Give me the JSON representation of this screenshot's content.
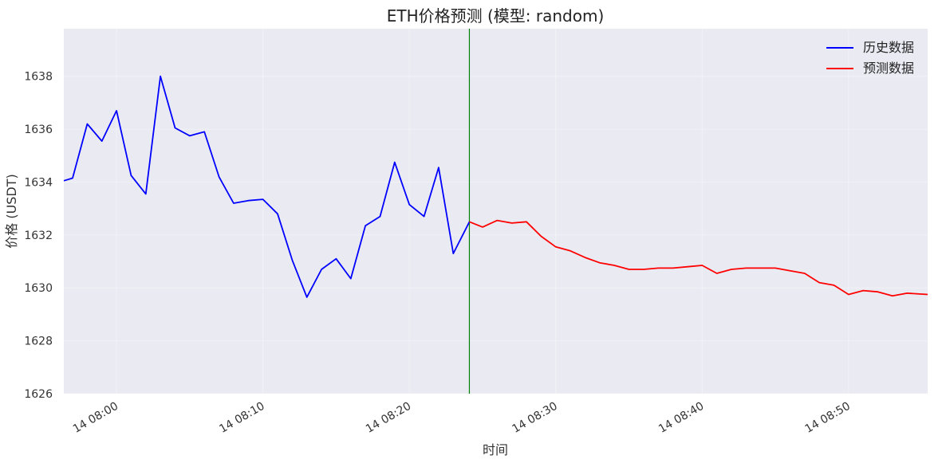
{
  "chart_data": {
    "type": "line",
    "title": "ETH价格预测 (模型: random)",
    "xlabel": "时间",
    "ylabel": "价格 (USDT)",
    "x_unit": "minutes",
    "xlim": [
      "08:56",
      "08:55"
    ],
    "x_range_minutes": [
      -3.6,
      55.4
    ],
    "ylim": [
      1626,
      1639.8
    ],
    "y_ticks": [
      1626,
      1628,
      1630,
      1632,
      1634,
      1636,
      1638
    ],
    "x_ticks": [
      {
        "x": 0,
        "label": "14 08:00"
      },
      {
        "x": 10,
        "label": "14 08:10"
      },
      {
        "x": 20,
        "label": "14 08:20"
      },
      {
        "x": 30,
        "label": "14 08:30"
      },
      {
        "x": 40,
        "label": "14 08:40"
      },
      {
        "x": 50,
        "label": "14 08:50"
      }
    ],
    "grid": true,
    "legend_position": "top-right",
    "split_line_x": 24.1,
    "colors": {
      "background": "#eaeaf2",
      "history": "#0000ff",
      "forecast": "#ff0000",
      "split": "#008000"
    },
    "series": [
      {
        "name": "历史数据",
        "key": "history",
        "points": [
          [
            -3.6,
            1634.05
          ],
          [
            -3.0,
            1634.15
          ],
          [
            -2.0,
            1636.2
          ],
          [
            -1.0,
            1635.55
          ],
          [
            0.0,
            1636.7
          ],
          [
            1.0,
            1634.25
          ],
          [
            2.0,
            1633.55
          ],
          [
            3.0,
            1638.0
          ],
          [
            4.0,
            1636.05
          ],
          [
            5.0,
            1635.75
          ],
          [
            6.0,
            1635.9
          ],
          [
            7.0,
            1634.2
          ],
          [
            8.0,
            1633.2
          ],
          [
            9.0,
            1633.3
          ],
          [
            10.0,
            1633.35
          ],
          [
            11.0,
            1632.8
          ],
          [
            12.0,
            1631.05
          ],
          [
            13.0,
            1629.65
          ],
          [
            14.0,
            1630.7
          ],
          [
            15.0,
            1631.1
          ],
          [
            16.0,
            1630.35
          ],
          [
            17.0,
            1632.35
          ],
          [
            18.0,
            1632.7
          ],
          [
            19.0,
            1634.75
          ],
          [
            20.0,
            1633.15
          ],
          [
            21.0,
            1632.7
          ],
          [
            22.0,
            1634.55
          ],
          [
            23.0,
            1631.3
          ],
          [
            24.1,
            1632.5
          ]
        ]
      },
      {
        "name": "预测数据",
        "key": "forecast",
        "points": [
          [
            24.1,
            1632.5
          ],
          [
            25.0,
            1632.3
          ],
          [
            26.0,
            1632.55
          ],
          [
            27.0,
            1632.45
          ],
          [
            28.0,
            1632.5
          ],
          [
            29.0,
            1631.95
          ],
          [
            30.0,
            1631.55
          ],
          [
            31.0,
            1631.4
          ],
          [
            32.0,
            1631.15
          ],
          [
            33.0,
            1630.95
          ],
          [
            34.0,
            1630.85
          ],
          [
            35.0,
            1630.7
          ],
          [
            36.0,
            1630.7
          ],
          [
            37.0,
            1630.75
          ],
          [
            38.0,
            1630.75
          ],
          [
            39.0,
            1630.8
          ],
          [
            40.0,
            1630.85
          ],
          [
            41.0,
            1630.55
          ],
          [
            42.0,
            1630.7
          ],
          [
            43.0,
            1630.75
          ],
          [
            44.0,
            1630.75
          ],
          [
            45.0,
            1630.75
          ],
          [
            46.0,
            1630.65
          ],
          [
            47.0,
            1630.55
          ],
          [
            48.0,
            1630.2
          ],
          [
            49.0,
            1630.1
          ],
          [
            50.0,
            1629.75
          ],
          [
            51.0,
            1629.9
          ],
          [
            52.0,
            1629.85
          ],
          [
            53.0,
            1629.7
          ],
          [
            54.0,
            1629.8
          ],
          [
            55.4,
            1629.75
          ]
        ]
      }
    ]
  }
}
